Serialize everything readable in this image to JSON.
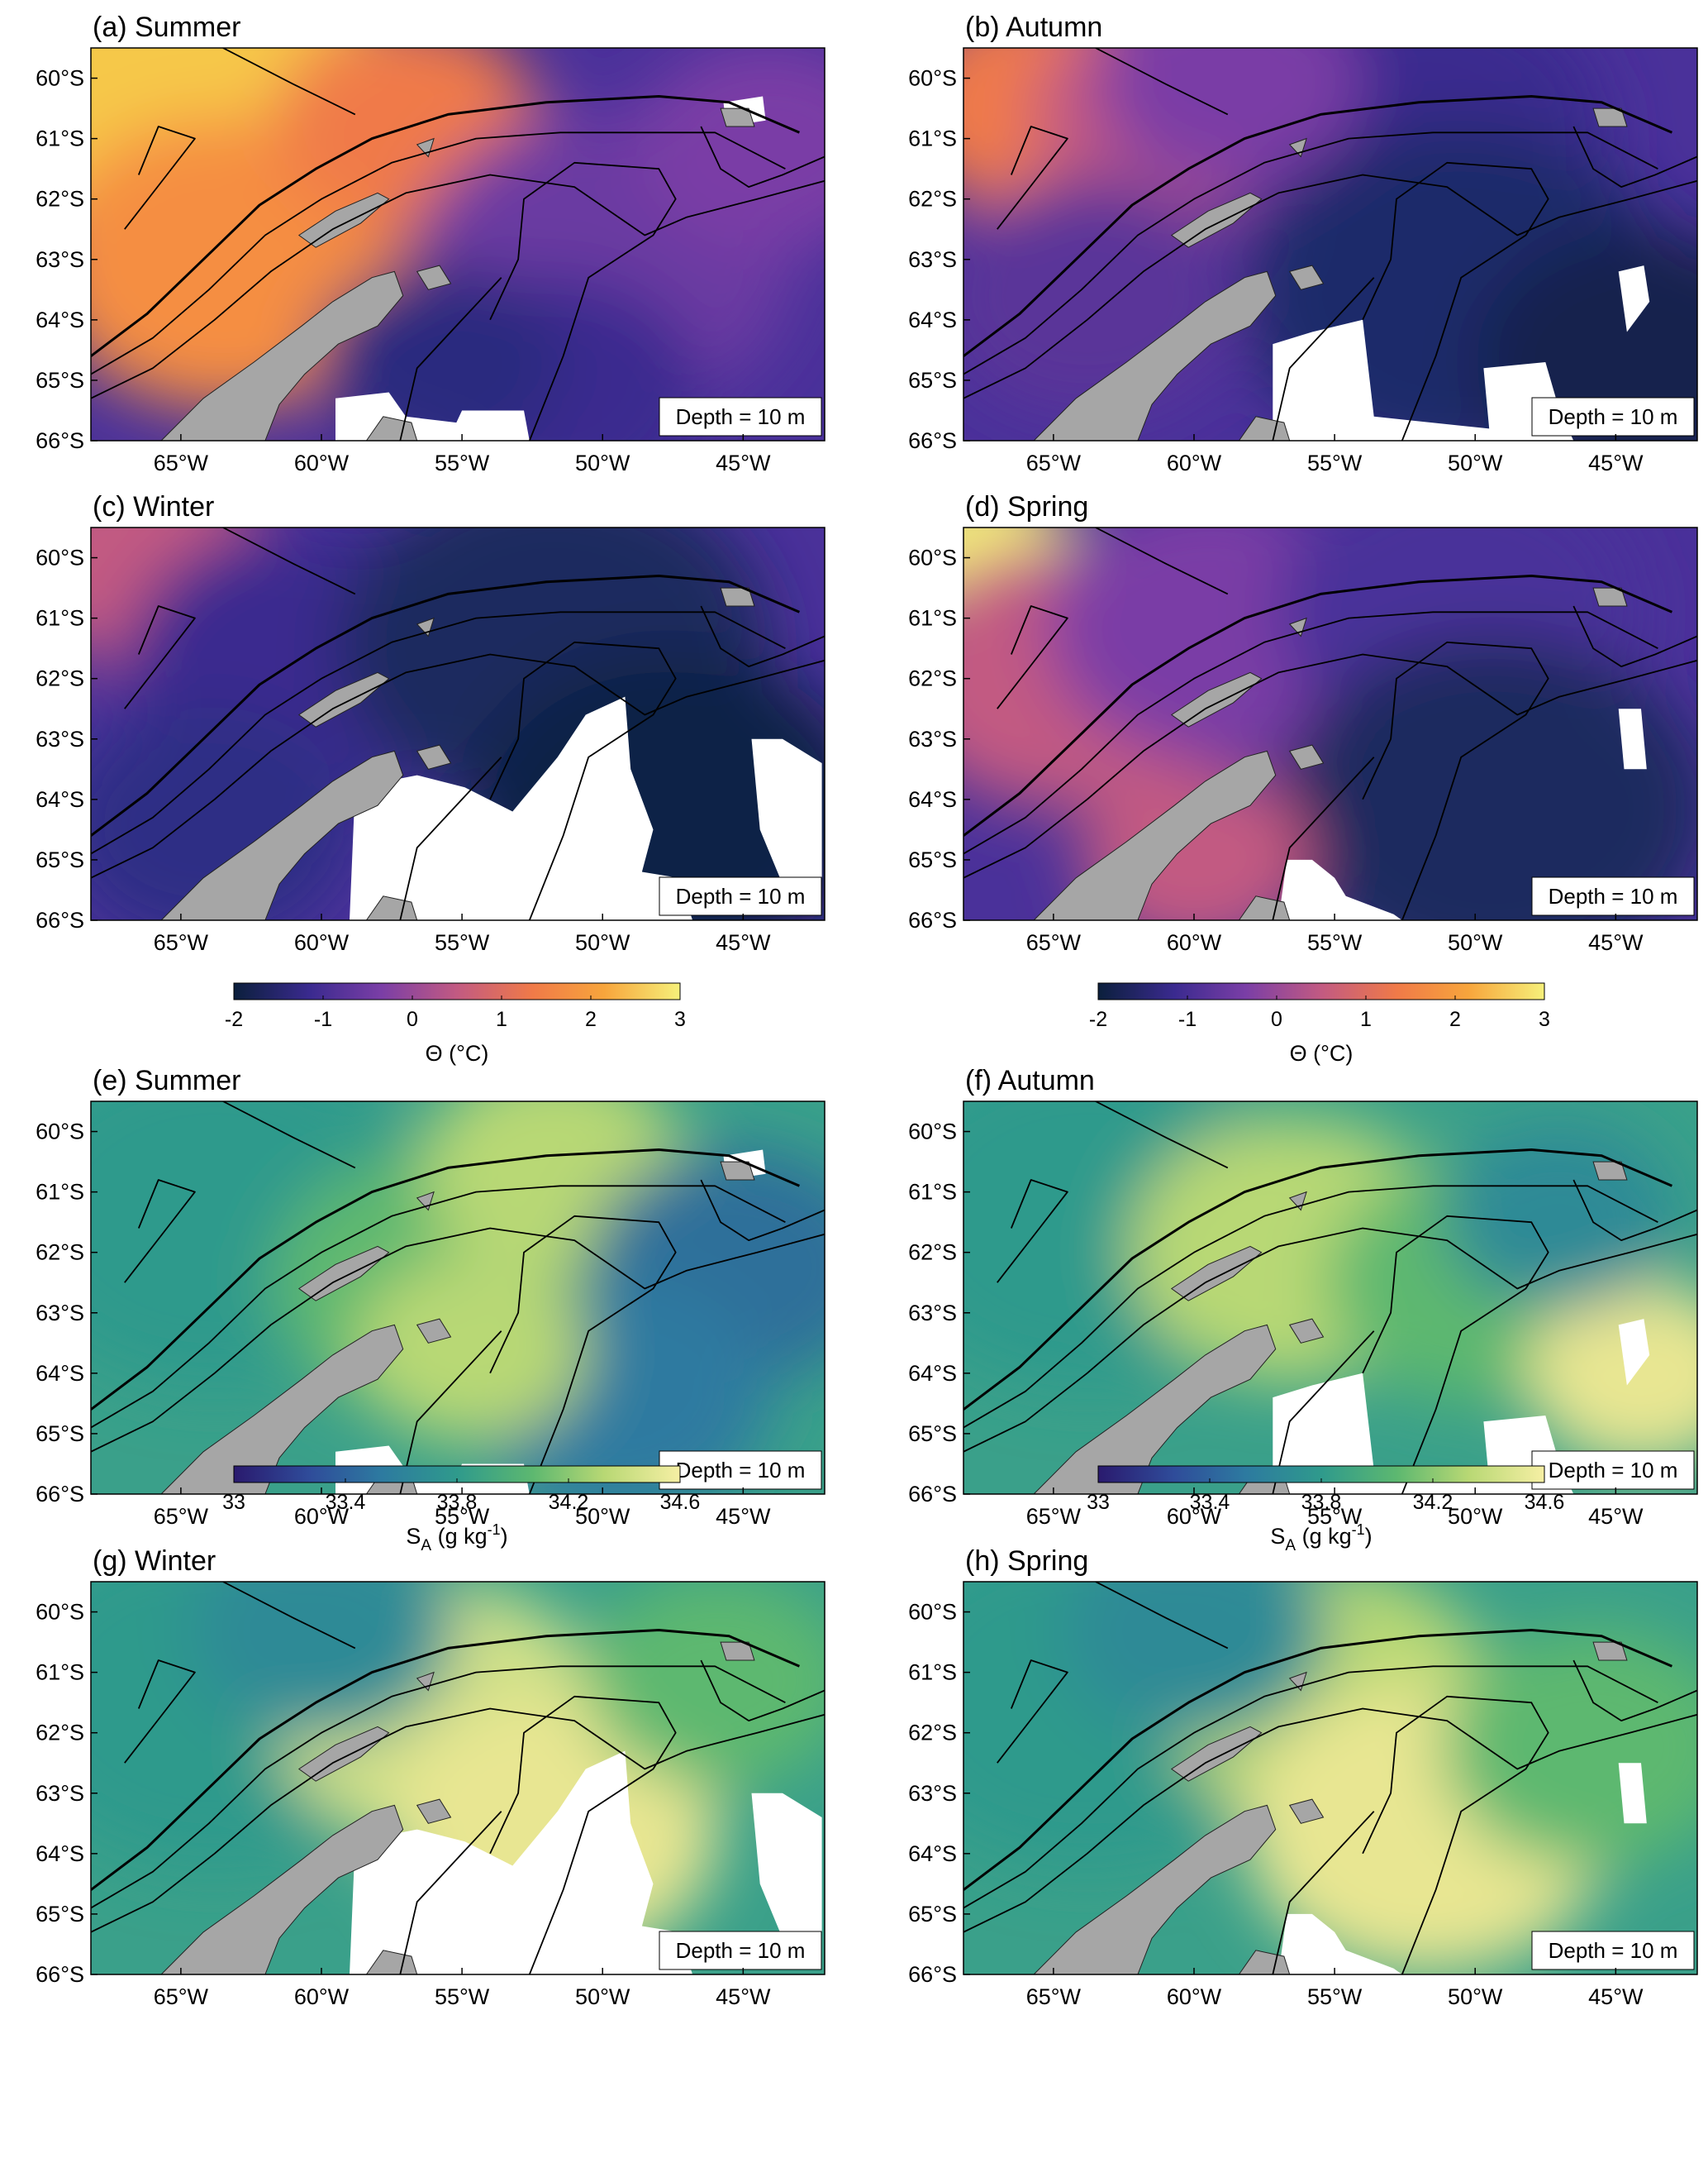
{
  "figure": {
    "panels": [
      {
        "label": "(a) Summer",
        "variable": "temperature",
        "depth_label": "Depth = 10 m"
      },
      {
        "label": "(b) Autumn",
        "variable": "temperature",
        "depth_label": "Depth = 10 m"
      },
      {
        "label": "(c) Winter",
        "variable": "temperature",
        "depth_label": "Depth = 10 m"
      },
      {
        "label": "(d) Spring",
        "variable": "temperature",
        "depth_label": "Depth = 10 m"
      },
      {
        "label": "(e) Summer",
        "variable": "salinity",
        "depth_label": "Depth = 10 m"
      },
      {
        "label": "(f) Autumn",
        "variable": "salinity",
        "depth_label": "Depth = 10 m"
      },
      {
        "label": "(g) Winter",
        "variable": "salinity",
        "depth_label": "Depth = 10 m"
      },
      {
        "label": "(h) Spring",
        "variable": "salinity",
        "depth_label": "Depth = 10 m"
      }
    ],
    "lat_ticks": [
      "60°S",
      "61°S",
      "62°S",
      "63°S",
      "64°S",
      "65°S",
      "66°S"
    ],
    "lon_ticks": [
      "65°W",
      "60°W",
      "55°W",
      "50°W",
      "45°W"
    ],
    "colorbars": {
      "temperature": {
        "ticks": [
          "-2",
          "-1",
          "0",
          "1",
          "2",
          "3"
        ],
        "label": "Θ (°C)",
        "range": [
          -2,
          3
        ],
        "colormap": [
          "#0b1f3c",
          "#3a2a8f",
          "#7a3ea6",
          "#c25a82",
          "#f07a48",
          "#f7a53c",
          "#f6f07a"
        ]
      },
      "salinity": {
        "ticks": [
          "33",
          "33.4",
          "33.8",
          "34.2",
          "34.6"
        ],
        "label_main": "S",
        "label_sub": "A",
        "label_units": " (g kg",
        "label_sup": "-1",
        "label_close": ")",
        "range": [
          33,
          34.6
        ],
        "colormap": [
          "#2a1a6e",
          "#2f4c9a",
          "#2d7aa0",
          "#2f9a8c",
          "#5db870",
          "#b8d874",
          "#f6efa4"
        ]
      }
    },
    "colors": {
      "land": "#a6a6a6",
      "no_data": "#ffffff",
      "contour": "#000000"
    }
  }
}
